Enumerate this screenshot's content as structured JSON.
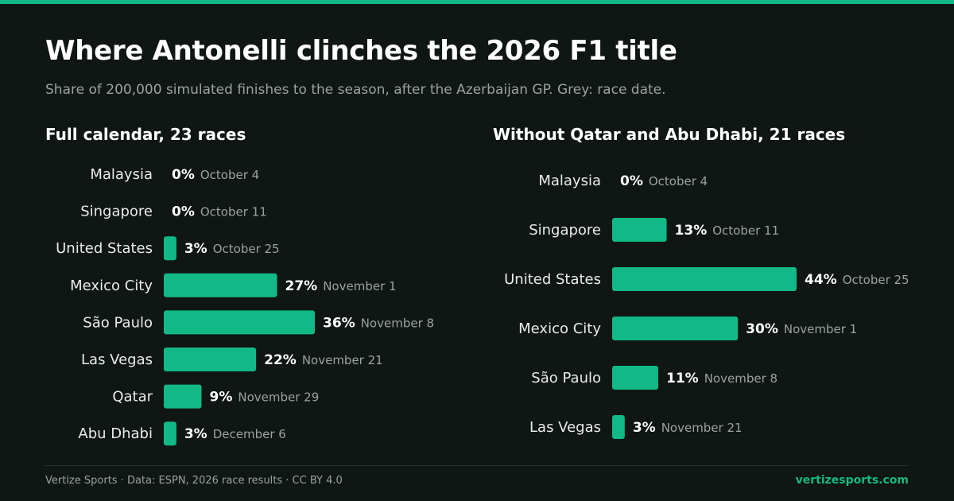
{
  "header": {
    "title": "Where Antonelli clinches the 2026 F1 title",
    "subtitle": "Share of 200,000 simulated finishes to the season, after the Azerbaijan GP. Grey: race date."
  },
  "colors": {
    "accent": "#12b886",
    "muted": "#9aa3a0",
    "background": "#0f1613"
  },
  "chart_data": [
    {
      "type": "bar",
      "orientation": "horizontal",
      "title": "Full calendar, 23 races",
      "categories": [
        "Malaysia",
        "Singapore",
        "United States",
        "Mexico City",
        "São Paulo",
        "Las Vegas",
        "Qatar",
        "Abu Dhabi"
      ],
      "values": [
        0,
        0,
        3,
        27,
        36,
        22,
        9,
        3
      ],
      "value_labels": [
        "0%",
        "0%",
        "3%",
        "27%",
        "36%",
        "22%",
        "9%",
        "3%"
      ],
      "dates": [
        "October 4",
        "October 11",
        "October 25",
        "November 1",
        "November 8",
        "November 21",
        "November 29",
        "December 6"
      ],
      "unit": "%",
      "xlim": [
        0,
        36
      ]
    },
    {
      "type": "bar",
      "orientation": "horizontal",
      "title": "Without Qatar and Abu Dhabi, 21 races",
      "categories": [
        "Malaysia",
        "Singapore",
        "United States",
        "Mexico City",
        "São Paulo",
        "Las Vegas"
      ],
      "values": [
        0,
        13,
        44,
        30,
        11,
        3
      ],
      "value_labels": [
        "0%",
        "13%",
        "44%",
        "30%",
        "11%",
        "3%"
      ],
      "dates": [
        "October 4",
        "October 11",
        "October 25",
        "November 1",
        "November 8",
        "November 21"
      ],
      "unit": "%",
      "xlim": [
        0,
        44
      ]
    }
  ],
  "footer": {
    "credit": "Vertize Sports · Data: ESPN, 2026 race results · CC BY 4.0",
    "site": "vertizesports.com"
  }
}
